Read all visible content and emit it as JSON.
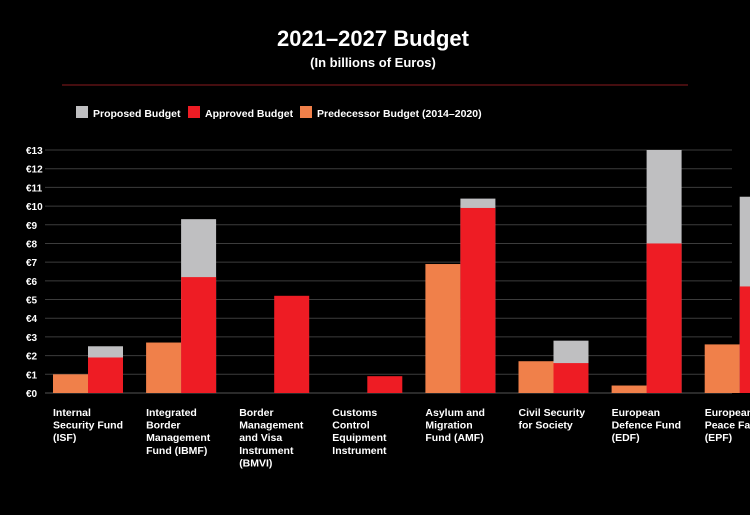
{
  "chart_data": {
    "type": "bar",
    "title": "2021–2027 Budget",
    "subtitle": "(In billions of Euros)",
    "legend_position": "top-left",
    "grid": true,
    "ylim": [
      0,
      13
    ],
    "y_ticks": [
      "€0",
      "€1",
      "€2",
      "€3",
      "€4",
      "€5",
      "€6",
      "€7",
      "€8",
      "€9",
      "€10",
      "€11",
      "€12",
      "€13"
    ],
    "categories": [
      [
        "Internal",
        "Security Fund",
        "(ISF)"
      ],
      [
        "Integrated",
        "Border",
        "Management",
        "Fund (IBMF)"
      ],
      [
        "Border",
        "Management",
        "and Visa",
        "Instrument",
        "(BMVI)"
      ],
      [
        "Customs",
        "Control",
        "Equipment",
        "Instrument"
      ],
      [
        "Asylum and",
        "Migration",
        "Fund (AMF)"
      ],
      [
        "Civil Security",
        "for Society"
      ],
      [
        "European",
        "Defence Fund",
        "(EDF)"
      ],
      [
        "European",
        "Peace Facility",
        "(EPF)"
      ]
    ],
    "series": [
      {
        "name": "Proposed Budget",
        "color": "#bfbfc1",
        "values": [
          2.5,
          9.3,
          null,
          null,
          10.4,
          2.8,
          13.0,
          10.5
        ]
      },
      {
        "name": "Approved Budget",
        "color": "#ee1c24",
        "values": [
          1.9,
          6.2,
          5.2,
          0.9,
          9.9,
          1.6,
          8.0,
          5.7
        ]
      },
      {
        "name": "Predecessor Budget (2014–2020)",
        "color": "#f0804a",
        "values": [
          1.0,
          2.7,
          null,
          null,
          6.9,
          1.7,
          0.4,
          2.6
        ]
      }
    ]
  }
}
